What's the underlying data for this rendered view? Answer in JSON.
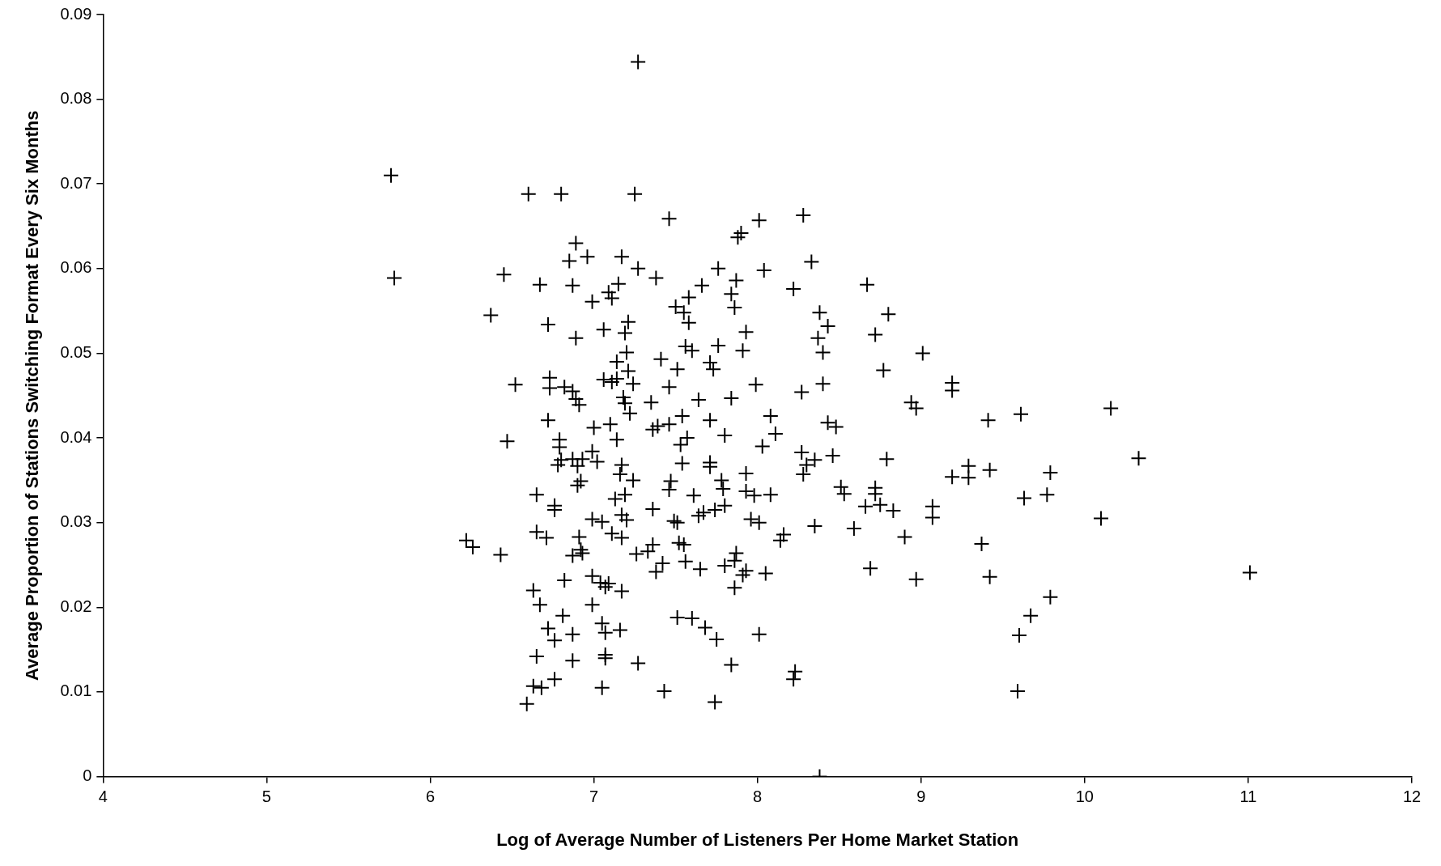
{
  "chart_data": {
    "type": "scatter",
    "xlabel": "Log of Average Number of Listeners Per Home Market Station",
    "ylabel": "Average Proportion of Stations Switching Format Every Six Months",
    "xlim": [
      4,
      12
    ],
    "xticks": [
      4,
      5,
      6,
      7,
      8,
      9,
      10,
      11,
      12
    ],
    "ylim": [
      0,
      0.09
    ],
    "yticks": [
      0,
      0.01,
      0.02,
      0.03,
      0.04,
      0.05,
      0.06,
      0.07,
      0.08,
      0.09
    ],
    "grid": false,
    "legend": false,
    "marker": "cross",
    "series": [
      {
        "color": "#000000",
        "x": [
          5.76,
          5.78,
          7.27,
          6.6,
          6.8,
          7.25,
          7.46,
          8.01,
          8.28,
          6.89,
          6.96,
          6.85,
          7.17,
          7.27,
          7.38,
          7.76,
          7.9,
          7.88,
          8.04,
          8.33,
          8.22,
          6.45,
          6.67,
          6.87,
          7.09,
          7.11,
          7.15,
          7.66,
          7.58,
          7.84,
          7.87,
          7.86,
          8.67,
          6.37,
          6.72,
          6.89,
          6.99,
          7.06,
          7.21,
          7.19,
          7.5,
          7.55,
          7.58,
          7.93,
          8.38,
          8.43,
          8.8,
          8.72,
          8.37,
          8.4,
          9.01,
          7.56,
          7.6,
          7.76,
          7.91,
          7.2,
          7.14,
          7.41,
          7.71,
          7.51,
          7.21,
          7.73,
          8.77,
          6.52,
          6.73,
          6.73,
          6.82,
          6.87,
          6.89,
          6.91,
          7.06,
          7.11,
          7.14,
          7.18,
          7.24,
          7.19,
          7.22,
          7.35,
          7.46,
          7.64,
          7.84,
          7.99,
          8.27,
          8.4,
          9.19,
          9.19,
          8.94,
          8.97,
          10.16,
          6.72,
          6.47,
          7.0,
          7.1,
          7.14,
          7.36,
          7.39,
          7.54,
          7.46,
          7.71,
          7.8,
          7.57,
          7.53,
          8.08,
          8.11,
          8.03,
          8.43,
          8.48,
          9.41,
          9.61,
          6.79,
          6.79,
          6.8,
          6.87,
          6.9,
          6.93,
          6.99,
          7.02,
          7.17,
          7.16,
          7.24,
          7.13,
          7.19,
          6.92,
          6.9,
          6.78,
          6.65,
          6.76,
          6.76,
          7.36,
          7.47,
          7.46,
          7.54,
          7.71,
          7.71,
          7.78,
          7.79,
          7.93,
          7.93,
          7.98,
          8.08,
          7.61,
          7.8,
          7.74,
          8.27,
          8.3,
          8.28,
          8.35,
          8.46,
          8.51,
          8.53,
          8.72,
          8.72,
          8.66,
          8.75,
          8.83,
          8.79,
          9.07,
          9.07,
          9.19,
          9.29,
          9.29,
          9.42,
          9.63,
          9.77,
          9.79,
          10.33,
          10.1,
          6.99,
          7.05,
          7.17,
          7.2,
          7.49,
          7.51,
          7.64,
          7.67,
          7.96,
          8.01,
          8.59,
          8.35,
          6.65,
          6.71,
          6.91,
          7.11,
          7.17,
          6.22,
          6.26,
          6.43,
          6.92,
          6.93,
          6.87,
          7.26,
          7.33,
          7.36,
          7.52,
          7.55,
          8.14,
          8.16,
          8.9,
          9.37,
          7.87,
          7.86,
          7.56,
          7.42,
          7.38,
          7.8,
          7.93,
          7.91,
          8.05,
          7.65,
          6.99,
          7.04,
          7.07,
          7.09,
          7.17,
          6.82,
          7.86,
          6.63,
          8.69,
          8.97,
          9.42,
          11.01,
          6.67,
          6.99,
          9.79,
          9.67,
          9.6,
          6.81,
          7.05,
          7.07,
          7.16,
          6.72,
          6.76,
          6.87,
          7.51,
          7.6,
          7.68,
          7.75,
          8.01,
          6.65,
          6.87,
          7.07,
          7.07,
          7.27,
          7.84,
          6.76,
          6.63,
          6.68,
          7.05,
          7.43,
          6.59,
          7.74,
          8.23,
          8.22,
          9.59,
          8.38
        ],
        "values": [
          0.071,
          0.0589,
          0.0844,
          0.0688,
          0.0688,
          0.0688,
          0.0659,
          0.0657,
          0.0663,
          0.063,
          0.0614,
          0.0609,
          0.0614,
          0.06,
          0.0589,
          0.06,
          0.0642,
          0.0637,
          0.0598,
          0.0608,
          0.0576,
          0.0593,
          0.0581,
          0.058,
          0.0572,
          0.0565,
          0.0582,
          0.058,
          0.0566,
          0.057,
          0.0586,
          0.0554,
          0.0581,
          0.0545,
          0.0534,
          0.0518,
          0.0561,
          0.0528,
          0.0537,
          0.0524,
          0.0555,
          0.0548,
          0.0536,
          0.0525,
          0.0548,
          0.0532,
          0.0546,
          0.0522,
          0.0518,
          0.0501,
          0.05,
          0.0508,
          0.0503,
          0.0509,
          0.0503,
          0.0501,
          0.049,
          0.0493,
          0.0489,
          0.0481,
          0.0479,
          0.0481,
          0.048,
          0.0463,
          0.0471,
          0.0459,
          0.046,
          0.0455,
          0.0446,
          0.0439,
          0.0469,
          0.0466,
          0.047,
          0.0448,
          0.0464,
          0.0441,
          0.0429,
          0.0442,
          0.046,
          0.0445,
          0.0447,
          0.0463,
          0.0454,
          0.0464,
          0.0465,
          0.0456,
          0.0442,
          0.0435,
          0.0435,
          0.0421,
          0.0396,
          0.0412,
          0.0416,
          0.0398,
          0.041,
          0.0414,
          0.0426,
          0.0416,
          0.0421,
          0.0403,
          0.04,
          0.0392,
          0.0426,
          0.0405,
          0.039,
          0.0418,
          0.0413,
          0.0421,
          0.0428,
          0.0398,
          0.0389,
          0.0374,
          0.0375,
          0.0367,
          0.0375,
          0.0384,
          0.0372,
          0.0368,
          0.0357,
          0.035,
          0.0328,
          0.0333,
          0.0349,
          0.0344,
          0.0368,
          0.0333,
          0.032,
          0.0315,
          0.0316,
          0.0349,
          0.0339,
          0.037,
          0.0371,
          0.0366,
          0.035,
          0.034,
          0.0358,
          0.0337,
          0.0332,
          0.0333,
          0.0332,
          0.032,
          0.0315,
          0.0383,
          0.0368,
          0.0357,
          0.0374,
          0.0379,
          0.0342,
          0.0334,
          0.0341,
          0.0334,
          0.0319,
          0.0321,
          0.0314,
          0.0375,
          0.0319,
          0.0306,
          0.0354,
          0.0367,
          0.0353,
          0.0362,
          0.0329,
          0.0333,
          0.0359,
          0.0376,
          0.0305,
          0.0304,
          0.0301,
          0.0309,
          0.0303,
          0.0302,
          0.03,
          0.0308,
          0.0312,
          0.0304,
          0.03,
          0.0293,
          0.0296,
          0.0289,
          0.0282,
          0.0283,
          0.0287,
          0.0282,
          0.0279,
          0.0271,
          0.0262,
          0.0268,
          0.0264,
          0.0261,
          0.0263,
          0.0266,
          0.0274,
          0.0276,
          0.0274,
          0.0279,
          0.0286,
          0.0283,
          0.0275,
          0.0264,
          0.0255,
          0.0254,
          0.0252,
          0.0242,
          0.0249,
          0.0243,
          0.0238,
          0.024,
          0.0245,
          0.0237,
          0.0229,
          0.0224,
          0.0228,
          0.0219,
          0.0232,
          0.0223,
          0.022,
          0.0246,
          0.0233,
          0.0236,
          0.0241,
          0.0203,
          0.0203,
          0.0212,
          0.019,
          0.0167,
          0.019,
          0.0181,
          0.017,
          0.0173,
          0.0175,
          0.0161,
          0.0168,
          0.0188,
          0.0187,
          0.0176,
          0.0162,
          0.0168,
          0.0142,
          0.0137,
          0.0144,
          0.014,
          0.0134,
          0.0132,
          0.0115,
          0.0107,
          0.0105,
          0.0105,
          0.0101,
          0.0086,
          0.0088,
          0.0124,
          0.0115,
          0.0101,
          0.0
        ]
      }
    ]
  }
}
